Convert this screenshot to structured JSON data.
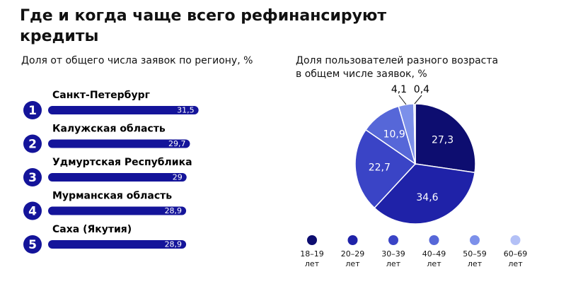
{
  "title": "Где и когда чаще всего рефинансируют кредиты",
  "chart_data": [
    {
      "type": "bar",
      "title": "Доля от общего числа заявок по региону, %",
      "ranks": [
        1,
        2,
        3,
        4,
        5
      ],
      "categories": [
        "Санкт-Петербург",
        "Калужская область",
        "Удмуртская Республика",
        "Мурманская область",
        "Саха (Якутия)"
      ],
      "values": [
        31.5,
        29.7,
        29,
        28.9,
        28.9
      ],
      "value_labels": [
        "31,5",
        "29,7",
        "29",
        "28,9",
        "28,9"
      ],
      "color": "#14149a"
    },
    {
      "type": "pie",
      "title": "Доля пользователей разного возраста в общем числе заявок, %",
      "categories": [
        "18–19 лет",
        "20–29 лет",
        "30–39 лет",
        "40–49 лет",
        "50–59 лет",
        "60–69 лет"
      ],
      "values": [
        27.3,
        34.6,
        22.7,
        10.9,
        4.1,
        0.4
      ],
      "value_labels": [
        "27,3",
        "34,6",
        "22,7",
        "10,9",
        "4,1",
        "0,4"
      ],
      "colors": [
        "#0d0d70",
        "#1f22a8",
        "#3a44c6",
        "#5667d8",
        "#7c90ea",
        "#b3c0f6"
      ]
    }
  ]
}
